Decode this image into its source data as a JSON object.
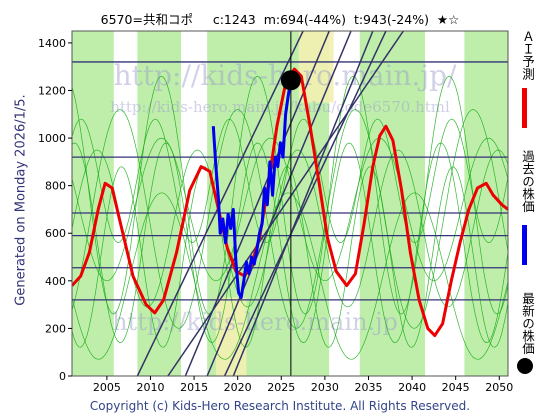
{
  "header": {
    "code_name": "6570=共和コポ",
    "current": "c:1243",
    "min_info": "m:694(-44%)",
    "target_info": "t:943(-24%)",
    "stars": "★☆"
  },
  "watermark": {
    "main": "http://kids-hero.main.jp/",
    "sub": "http://kids-hero.main.jp/kabu/code6570.html",
    "bottom": "http://kids-hero.main.jp"
  },
  "side_text": "Generated on Monday 2026/1/5.",
  "footer": "Copyright (c) Kids-Hero Research Institute. All Rights Reserved.",
  "legend": [
    {
      "label": "ＡＩ予測",
      "color": "#ee0000",
      "kind": "line"
    },
    {
      "label": "過去の株価",
      "color": "#0000ee",
      "kind": "line"
    },
    {
      "label": "最新の株価",
      "color": "#000000",
      "kind": "dot"
    }
  ],
  "colors": {
    "band_green": "#bfeeaa",
    "band_yellow": "#f2f0b0",
    "band_white": "#ffffff",
    "thin_green": "#11aa11",
    "grid_h": "#333377",
    "trend": "#333366",
    "prediction": "#ee0000",
    "history": "#0000ee",
    "current_dot": "#000000"
  },
  "chart_data": {
    "type": "line",
    "xlim": [
      2001,
      2051
    ],
    "ylim": [
      0,
      1450
    ],
    "x_ticks": [
      2005,
      2010,
      2015,
      2020,
      2025,
      2030,
      2035,
      2040,
      2045,
      2050
    ],
    "y_ticks": [
      0,
      200,
      400,
      600,
      800,
      1000,
      1200,
      1400
    ],
    "horizontal_lines": [
      320,
      455,
      590,
      685,
      920,
      1320
    ],
    "current_point": {
      "x": 2026.1,
      "y": 1243
    },
    "current_marker_x": 2026.1,
    "series": [
      {
        "name": "ＡＩ予測",
        "points": [
          [
            2001,
            380
          ],
          [
            2002,
            420
          ],
          [
            2003,
            520
          ],
          [
            2004,
            700
          ],
          [
            2004.8,
            810
          ],
          [
            2005.6,
            790
          ],
          [
            2006.5,
            650
          ],
          [
            2008,
            420
          ],
          [
            2009.5,
            300
          ],
          [
            2010.5,
            265
          ],
          [
            2011.5,
            320
          ],
          [
            2013,
            520
          ],
          [
            2014.5,
            780
          ],
          [
            2015.8,
            880
          ],
          [
            2016.8,
            860
          ],
          [
            2017.8,
            700
          ],
          [
            2018.8,
            540
          ],
          [
            2019.8,
            440
          ],
          [
            2020.8,
            420
          ],
          [
            2021.6,
            470
          ],
          [
            2022.5,
            580
          ],
          [
            2023.5,
            800
          ],
          [
            2024.5,
            1050
          ],
          [
            2025.5,
            1230
          ],
          [
            2026.5,
            1290
          ],
          [
            2027.3,
            1260
          ],
          [
            2028.3,
            1050
          ],
          [
            2029.3,
            820
          ],
          [
            2030.3,
            580
          ],
          [
            2031.3,
            440
          ],
          [
            2032.5,
            380
          ],
          [
            2033.5,
            430
          ],
          [
            2034.5,
            640
          ],
          [
            2035.5,
            880
          ],
          [
            2036.3,
            1010
          ],
          [
            2037,
            1050
          ],
          [
            2037.8,
            990
          ],
          [
            2038.8,
            780
          ],
          [
            2039.8,
            520
          ],
          [
            2040.8,
            320
          ],
          [
            2041.8,
            200
          ],
          [
            2042.6,
            170
          ],
          [
            2043.5,
            220
          ],
          [
            2044.5,
            400
          ],
          [
            2045.5,
            560
          ],
          [
            2046.5,
            700
          ],
          [
            2047.5,
            790
          ],
          [
            2048.5,
            810
          ],
          [
            2049.3,
            760
          ],
          [
            2050.3,
            720
          ],
          [
            2051,
            700
          ]
        ]
      },
      {
        "name": "過去の株価",
        "points": [
          [
            2017.2,
            1050
          ],
          [
            2017.5,
            880
          ],
          [
            2017.8,
            740
          ],
          [
            2018.0,
            600
          ],
          [
            2018.3,
            660
          ],
          [
            2018.6,
            560
          ],
          [
            2018.9,
            680
          ],
          [
            2019.2,
            620
          ],
          [
            2019.5,
            700
          ],
          [
            2019.8,
            480
          ],
          [
            2020.1,
            350
          ],
          [
            2020.4,
            330
          ],
          [
            2020.7,
            400
          ],
          [
            2021.0,
            480
          ],
          [
            2021.3,
            430
          ],
          [
            2021.6,
            500
          ],
          [
            2021.9,
            470
          ],
          [
            2022.2,
            530
          ],
          [
            2022.5,
            600
          ],
          [
            2022.8,
            640
          ],
          [
            2023.1,
            790
          ],
          [
            2023.4,
            720
          ],
          [
            2023.7,
            900
          ],
          [
            2024.0,
            760
          ],
          [
            2024.3,
            920
          ],
          [
            2024.6,
            880
          ],
          [
            2024.9,
            980
          ],
          [
            2025.2,
            920
          ],
          [
            2025.5,
            1100
          ],
          [
            2025.8,
            1180
          ],
          [
            2026.1,
            1243
          ]
        ]
      }
    ],
    "trend_lines": [
      {
        "x1": 2008.5,
        "y1": 0,
        "x2": 2027.5,
        "y2": 1450
      },
      {
        "x1": 2014.0,
        "y1": 0,
        "x2": 2030.5,
        "y2": 1450
      },
      {
        "x1": 2016.5,
        "y1": 0,
        "x2": 2033.0,
        "y2": 1450
      },
      {
        "x1": 2019.5,
        "y1": 0,
        "x2": 2035.5,
        "y2": 1450
      },
      {
        "x1": 2012.0,
        "y1": 0,
        "x2": 2039.0,
        "y2": 1450
      },
      {
        "x1": 2018.5,
        "y1": 0,
        "x2": 2037.0,
        "y2": 1450
      }
    ],
    "bands": [
      {
        "x0": 2001,
        "x1": 2005.8,
        "kind": "green"
      },
      {
        "x0": 2005.8,
        "x1": 2008.5,
        "kind": "white"
      },
      {
        "x0": 2008.5,
        "x1": 2013.5,
        "kind": "green"
      },
      {
        "x0": 2013.5,
        "x1": 2016.5,
        "kind": "white"
      },
      {
        "x0": 2016.5,
        "x1": 2030.5,
        "kind": "green"
      },
      {
        "x0": 2030.5,
        "x1": 2034.0,
        "kind": "white"
      },
      {
        "x0": 2034.0,
        "x1": 2041.5,
        "kind": "green"
      },
      {
        "x0": 2041.5,
        "x1": 2046.0,
        "kind": "white"
      },
      {
        "x0": 2046.0,
        "x1": 2051,
        "kind": "green"
      }
    ],
    "yellow_regions": [
      {
        "x0": 2017.5,
        "x1": 2021.0,
        "y0": 0,
        "y1": 330
      },
      {
        "x0": 2027.0,
        "x1": 2031.0,
        "y0": 1150,
        "y1": 1450
      }
    ],
    "green_curves": [
      {
        "phase": 0.0,
        "amp": 330,
        "base": 620,
        "period": 11.5
      },
      {
        "phase": 1.4,
        "amp": 420,
        "base": 560,
        "period": 10.5
      },
      {
        "phase": 2.7,
        "amp": 300,
        "base": 700,
        "period": 12.5
      },
      {
        "phase": 4.1,
        "amp": 380,
        "base": 500,
        "period": 9.5
      },
      {
        "phase": 5.3,
        "amp": 460,
        "base": 660,
        "period": 13.5
      },
      {
        "phase": 0.8,
        "amp": 260,
        "base": 820,
        "period": 8.5
      },
      {
        "phase": 3.4,
        "amp": 350,
        "base": 420,
        "period": 14.5
      },
      {
        "phase": 2.0,
        "amp": 500,
        "base": 760,
        "period": 11.0
      }
    ]
  }
}
